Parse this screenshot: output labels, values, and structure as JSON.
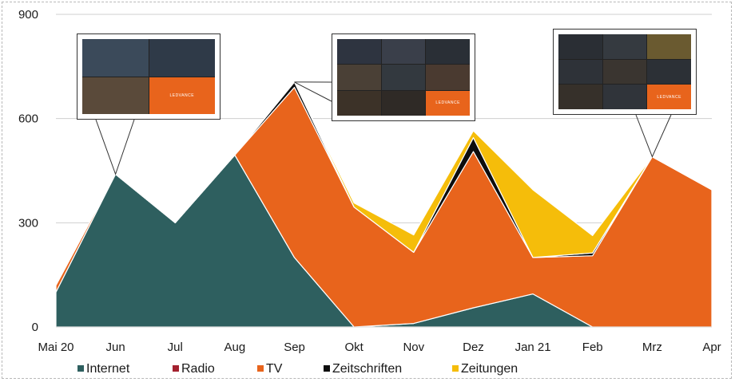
{
  "chart_data": {
    "type": "area",
    "stacked": true,
    "categories": [
      "Mai 20",
      "Jun",
      "Jul",
      "Aug",
      "Sep",
      "Okt",
      "Nov",
      "Dez",
      "Jan 21",
      "Feb",
      "Mrz",
      "Apr"
    ],
    "ylim": [
      0,
      900
    ],
    "yticks": [
      "0",
      "300",
      "600",
      "900"
    ],
    "grid": true,
    "legend_position": "bottom",
    "series": [
      {
        "name": "Internet",
        "color": "#2e5f5f",
        "values": [
          100,
          440,
          300,
          495,
          200,
          0,
          10,
          55,
          95,
          0,
          0,
          0
        ]
      },
      {
        "name": "Radio",
        "color": "#a3212f",
        "values": [
          0,
          0,
          0,
          0,
          0,
          0,
          0,
          0,
          0,
          0,
          0,
          0
        ]
      },
      {
        "name": "TV",
        "color": "#e8641c",
        "values": [
          20,
          0,
          0,
          0,
          490,
          345,
          205,
          450,
          105,
          205,
          490,
          395
        ]
      },
      {
        "name": "Zeitschriften",
        "color": "#0d0d0d",
        "values": [
          0,
          0,
          0,
          0,
          15,
          0,
          0,
          40,
          0,
          8,
          0,
          0
        ]
      },
      {
        "name": "Zeitungen",
        "color": "#f5bd0a",
        "values": [
          0,
          0,
          0,
          0,
          0,
          12,
          50,
          20,
          195,
          50,
          0,
          0
        ]
      }
    ],
    "callouts": [
      {
        "label_logo": "LEDVANCE",
        "at_category": "Jun"
      },
      {
        "label_logo": "LEDVANCE",
        "at_category": "Sep"
      },
      {
        "label_logo": "LEDVANCE",
        "at_category": "Mrz"
      }
    ]
  }
}
